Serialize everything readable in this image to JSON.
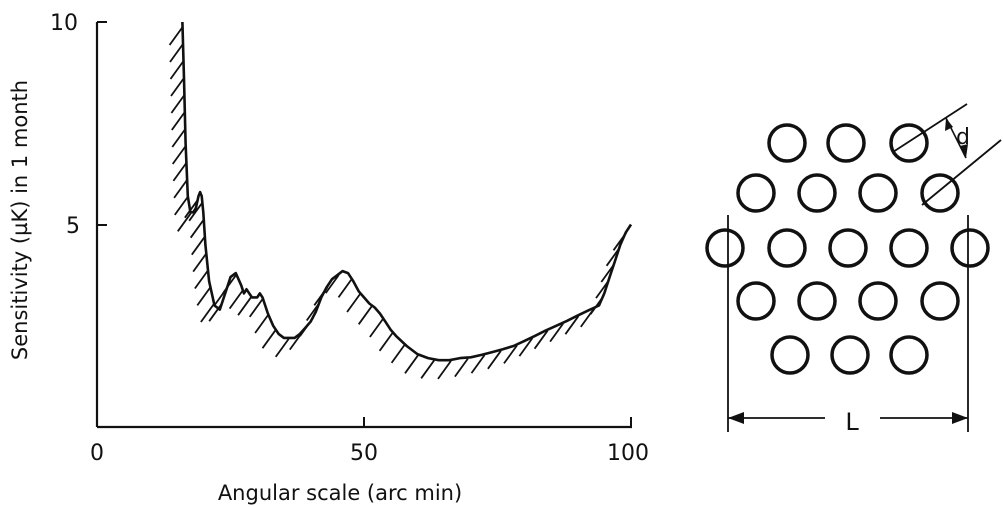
{
  "chart_data": {
    "type": "line",
    "xlabel": "Angular scale (arc min)",
    "ylabel": "Sensitivity (µK) in 1 month",
    "xlim": [
      0,
      100
    ],
    "ylim": [
      0,
      10
    ],
    "xticks": [
      "0",
      "50",
      "100"
    ],
    "yticks": [
      "5",
      "10"
    ],
    "grid": false,
    "hatch": "below curve",
    "series": [
      {
        "x": [
          16,
          16.3,
          16.6,
          17,
          17.5,
          18,
          18.5,
          19,
          19.3,
          19.6,
          19.9,
          20.3,
          21,
          22,
          23,
          24,
          25,
          26,
          27,
          27.5,
          28,
          29,
          30,
          30.5,
          31,
          32,
          33,
          34,
          35,
          36,
          37,
          38,
          39,
          40,
          41,
          42,
          43,
          44,
          45,
          46,
          47,
          48,
          49,
          50,
          51,
          52,
          53,
          54,
          55,
          56,
          58,
          60,
          62,
          64,
          66,
          68,
          70,
          72,
          74,
          76,
          78,
          80,
          82,
          84,
          86,
          88,
          90,
          92,
          94,
          95,
          96,
          97,
          98,
          99,
          100
        ],
        "y": [
          10,
          8.6,
          7.0,
          5.7,
          5.3,
          5.3,
          5.4,
          5.7,
          5.8,
          5.7,
          5.3,
          4.5,
          3.6,
          3.0,
          2.9,
          3.3,
          3.7,
          3.8,
          3.5,
          3.3,
          3.4,
          3.2,
          3.2,
          3.3,
          3.2,
          2.8,
          2.5,
          2.3,
          2.2,
          2.2,
          2.2,
          2.3,
          2.45,
          2.6,
          2.85,
          3.2,
          3.45,
          3.65,
          3.75,
          3.85,
          3.8,
          3.6,
          3.35,
          3.2,
          3.05,
          2.95,
          2.8,
          2.6,
          2.4,
          2.25,
          2.0,
          1.8,
          1.7,
          1.65,
          1.65,
          1.7,
          1.72,
          1.78,
          1.85,
          1.92,
          2.0,
          2.12,
          2.25,
          2.38,
          2.5,
          2.62,
          2.75,
          2.88,
          3.0,
          3.3,
          3.7,
          4.1,
          4.5,
          4.8,
          5.0
        ]
      }
    ]
  },
  "diagram": {
    "labels": {
      "spacing": "d",
      "extent": "L"
    }
  }
}
